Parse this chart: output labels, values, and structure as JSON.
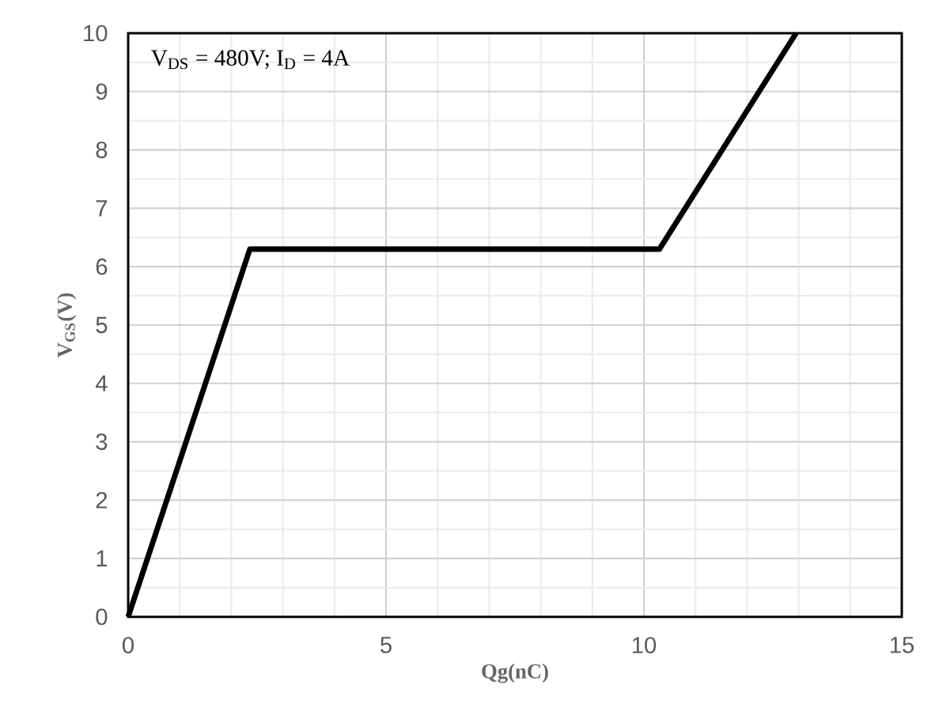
{
  "chart_data": {
    "type": "line",
    "xlabel": "Qg(nC)",
    "ylabel": "V$_{GS}$(V)",
    "annotations": [
      "V$_{DS}$ = 480V; I$_{D}$ = 4A"
    ],
    "x": [
      0,
      2.36,
      10.3,
      12.95
    ],
    "series": [
      {
        "color": "#000000",
        "values": [
          0,
          6.3,
          6.3,
          10
        ]
      }
    ],
    "xlim": [
      0,
      15
    ],
    "ylim": [
      0,
      10
    ],
    "xticks": [
      0,
      5,
      10,
      15
    ],
    "yticks": [
      0,
      1,
      2,
      3,
      4,
      5,
      6,
      7,
      8,
      9,
      10
    ],
    "grid": true,
    "marker": "none",
    "line_style": "solid"
  }
}
